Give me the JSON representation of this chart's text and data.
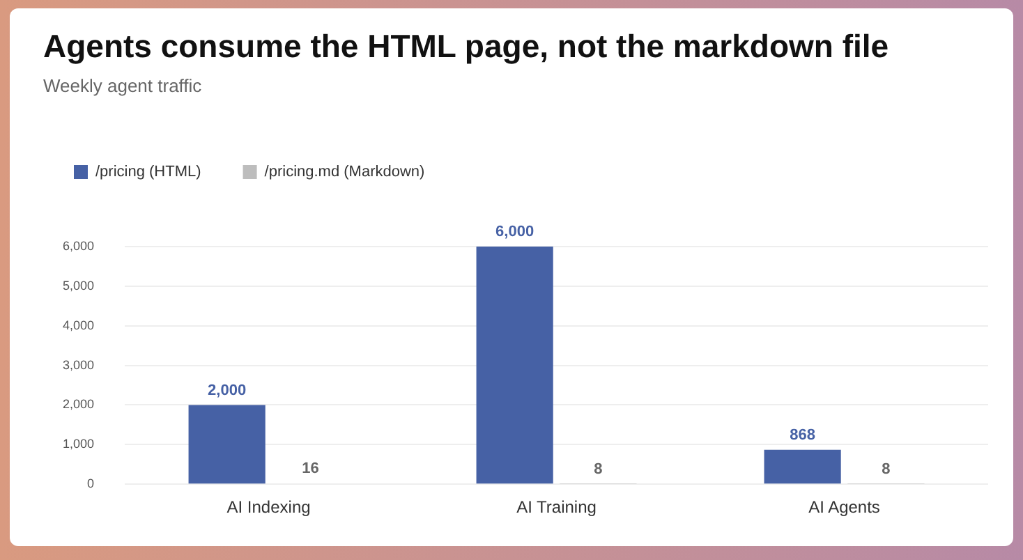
{
  "chart_data": {
    "type": "bar",
    "title": "Agents consume the HTML page, not the markdown file",
    "subtitle": "Weekly agent traffic",
    "categories": [
      "AI Indexing",
      "AI Training",
      "AI Agents"
    ],
    "series": [
      {
        "name": "/pricing (HTML)",
        "color": "#4661a5",
        "values": [
          2000,
          6000,
          868
        ],
        "value_labels": [
          "2,000",
          "6,000",
          "868"
        ]
      },
      {
        "name": "/pricing.md (Markdown)",
        "color": "#bdbdbd",
        "values": [
          16,
          8,
          8
        ],
        "value_labels": [
          "16",
          "8",
          "8"
        ]
      }
    ],
    "ylim": [
      0,
      6000
    ],
    "yticks": [
      0,
      {
        "value": 1000,
        "label": "1,000"
      },
      {
        "value": 2000,
        "label": "2,000"
      },
      {
        "value": 3000,
        "label": "3,000"
      },
      {
        "value": 4000,
        "label": "4,000"
      },
      {
        "value": 5000,
        "label": "5,000"
      },
      {
        "value": 6000,
        "label": "6,000"
      }
    ],
    "grid": "y",
    "legend": "top left"
  }
}
